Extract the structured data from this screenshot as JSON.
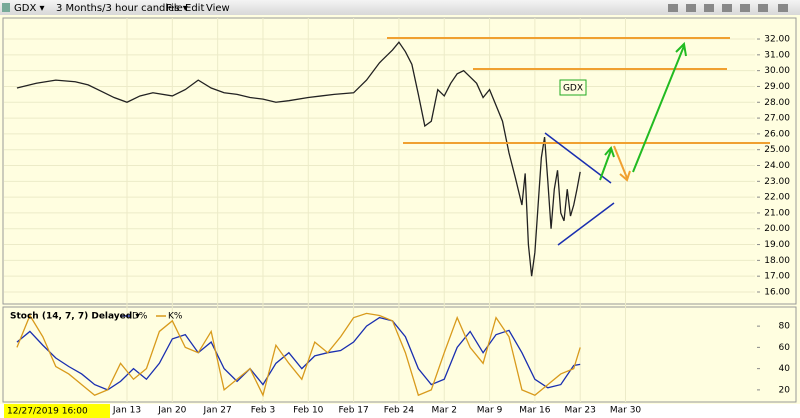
{
  "toolbar": {
    "symbol": "GDX ▾",
    "period": "3 Months/3 hour candles ▾",
    "menu": [
      "File",
      "Edit",
      "View"
    ]
  },
  "date_label": "12/27/2019 16:00",
  "chart_data": [
    {
      "type": "line",
      "ylim": [
        15.24,
        33.33
      ],
      "xlim": [
        -2,
        114
      ],
      "grid": true,
      "yticks": [
        {
          "value": 16,
          "label": "16.00"
        },
        {
          "value": 17,
          "label": "17.00"
        },
        {
          "value": 18,
          "label": "18.00"
        },
        {
          "value": 19,
          "label": "19.00"
        },
        {
          "value": 20,
          "label": "20.00"
        },
        {
          "value": 21,
          "label": "21.00"
        },
        {
          "value": 22,
          "label": "22.00"
        },
        {
          "value": 23,
          "label": "23.00"
        },
        {
          "value": 24,
          "label": "24.00"
        },
        {
          "value": 25,
          "label": "25.00"
        },
        {
          "value": 26,
          "label": "26.00"
        },
        {
          "value": 27,
          "label": "27.00"
        },
        {
          "value": 28,
          "label": "28.00"
        },
        {
          "value": 29,
          "label": "29.00"
        },
        {
          "value": 30,
          "label": "30.00"
        },
        {
          "value": 31,
          "label": "31.00"
        },
        {
          "value": 32,
          "label": "32.00"
        }
      ],
      "x": [
        0,
        3,
        6,
        9,
        11,
        13,
        15,
        17,
        19,
        21,
        24,
        26,
        28,
        30,
        32,
        34,
        36,
        38,
        40,
        42,
        45,
        47,
        49,
        52,
        54,
        56,
        58,
        59,
        60,
        61,
        62,
        63,
        64,
        65,
        66,
        67,
        68,
        69,
        70,
        71,
        72,
        73,
        74,
        75,
        76,
        77,
        78,
        78.5,
        79,
        79.5,
        80,
        80.5,
        81,
        81.5,
        82,
        82.5,
        83,
        83.5,
        84,
        84.5,
        85,
        85.5,
        86,
        86.5,
        87
      ],
      "series": [
        {
          "name": "GDX",
          "color": "#222222",
          "values": [
            28.9,
            29.2,
            29.4,
            29.3,
            29.1,
            28.7,
            28.3,
            28.0,
            28.4,
            28.6,
            28.4,
            28.8,
            29.4,
            28.9,
            28.6,
            28.5,
            28.3,
            28.2,
            28.0,
            28.1,
            28.3,
            28.4,
            28.5,
            28.6,
            29.4,
            30.5,
            31.3,
            31.8,
            31.2,
            30.4,
            28.5,
            26.5,
            26.8,
            28.8,
            28.4,
            29.2,
            29.8,
            30.0,
            29.6,
            29.2,
            28.3,
            28.8,
            27.8,
            26.8,
            24.8,
            23.2,
            21.5,
            23.5,
            19.0,
            17.0,
            18.5,
            21.5,
            24.5,
            25.8,
            23.0,
            20.0,
            22.5,
            23.7,
            21.0,
            20.5,
            22.5,
            20.8,
            21.5,
            22.5,
            23.6
          ]
        }
      ]
    },
    {
      "type": "line",
      "title": "Stoch (14, 7, 7) Delayed ▾",
      "ylim": [
        8.6,
        98
      ],
      "xlim": [
        -2,
        114
      ],
      "yticks": [
        20,
        40,
        60,
        80
      ],
      "xticks": [
        {
          "value": 17,
          "label": "Jan 13"
        },
        {
          "value": 24,
          "label": "Jan 20"
        },
        {
          "value": 31,
          "label": "Jan 27"
        },
        {
          "value": 38,
          "label": "Feb 3"
        },
        {
          "value": 45,
          "label": "Feb 10"
        },
        {
          "value": 52,
          "label": "Feb 17"
        },
        {
          "value": 59,
          "label": "Feb 24"
        },
        {
          "value": 66,
          "label": "Mar 2"
        },
        {
          "value": 73,
          "label": "Mar 9"
        },
        {
          "value": 80,
          "label": "Mar 16"
        },
        {
          "value": 87,
          "label": "Mar 23"
        },
        {
          "value": 94,
          "label": "Mar 30"
        }
      ],
      "x": [
        0,
        2,
        4,
        6,
        8,
        10,
        12,
        14,
        16,
        18,
        20,
        22,
        24,
        26,
        28,
        30,
        32,
        34,
        36,
        38,
        40,
        42,
        44,
        46,
        48,
        50,
        52,
        54,
        56,
        58,
        60,
        62,
        64,
        66,
        68,
        70,
        72,
        74,
        76,
        78,
        80,
        82,
        84,
        86,
        87
      ],
      "series": [
        {
          "name": "D%",
          "color": "#1a2fb0",
          "values": [
            65,
            75,
            62,
            50,
            42,
            35,
            25,
            20,
            28,
            40,
            30,
            45,
            68,
            72,
            55,
            65,
            40,
            28,
            40,
            25,
            45,
            55,
            40,
            52,
            55,
            57,
            65,
            80,
            88,
            85,
            70,
            40,
            25,
            30,
            60,
            75,
            55,
            72,
            76,
            55,
            30,
            22,
            25,
            43,
            44
          ]
        },
        {
          "name": "K%",
          "color": "#d89a1c",
          "values": [
            60,
            90,
            70,
            42,
            35,
            25,
            15,
            20,
            45,
            30,
            40,
            75,
            85,
            60,
            55,
            75,
            20,
            30,
            40,
            15,
            62,
            45,
            30,
            65,
            55,
            70,
            88,
            92,
            90,
            85,
            55,
            15,
            20,
            55,
            88,
            60,
            45,
            88,
            70,
            20,
            15,
            25,
            35,
            40,
            60
          ]
        }
      ]
    }
  ]
}
